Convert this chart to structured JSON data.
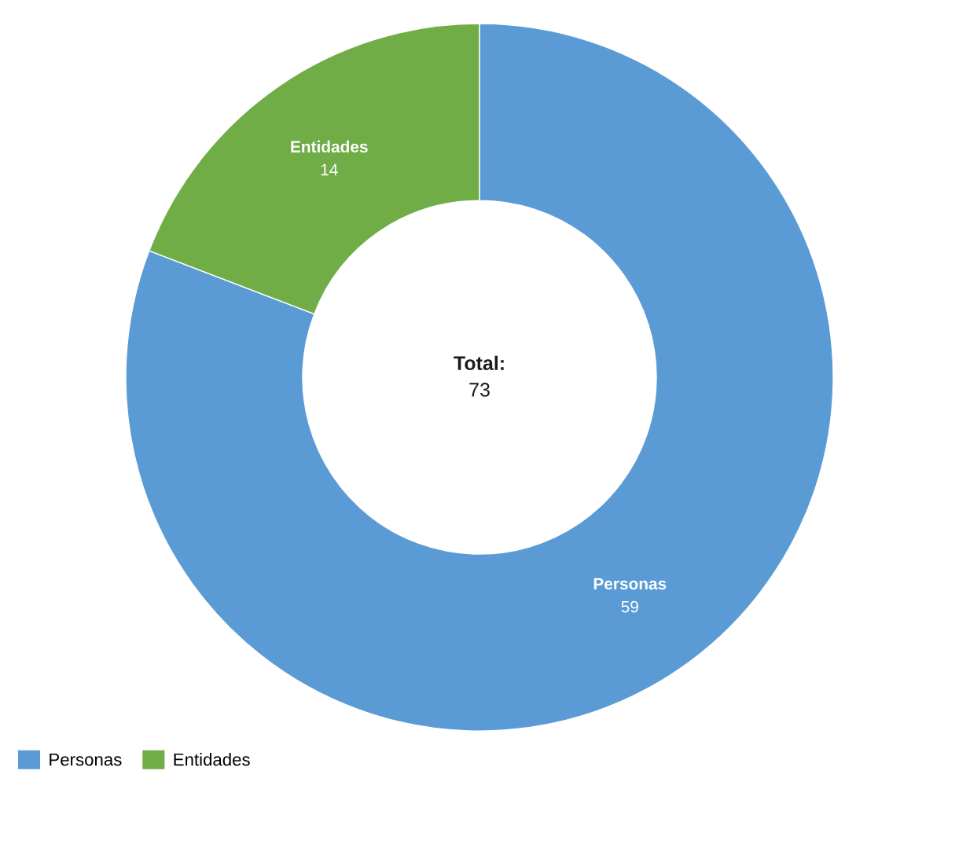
{
  "chart_data": {
    "type": "donut",
    "categories": [
      "Personas",
      "Entidades"
    ],
    "values": [
      59,
      14
    ],
    "colors": [
      "#5b9bd5",
      "#70ad47"
    ],
    "data_labels": true,
    "legend": "bottom left",
    "annotations": [
      "Total:",
      "73"
    ]
  }
}
